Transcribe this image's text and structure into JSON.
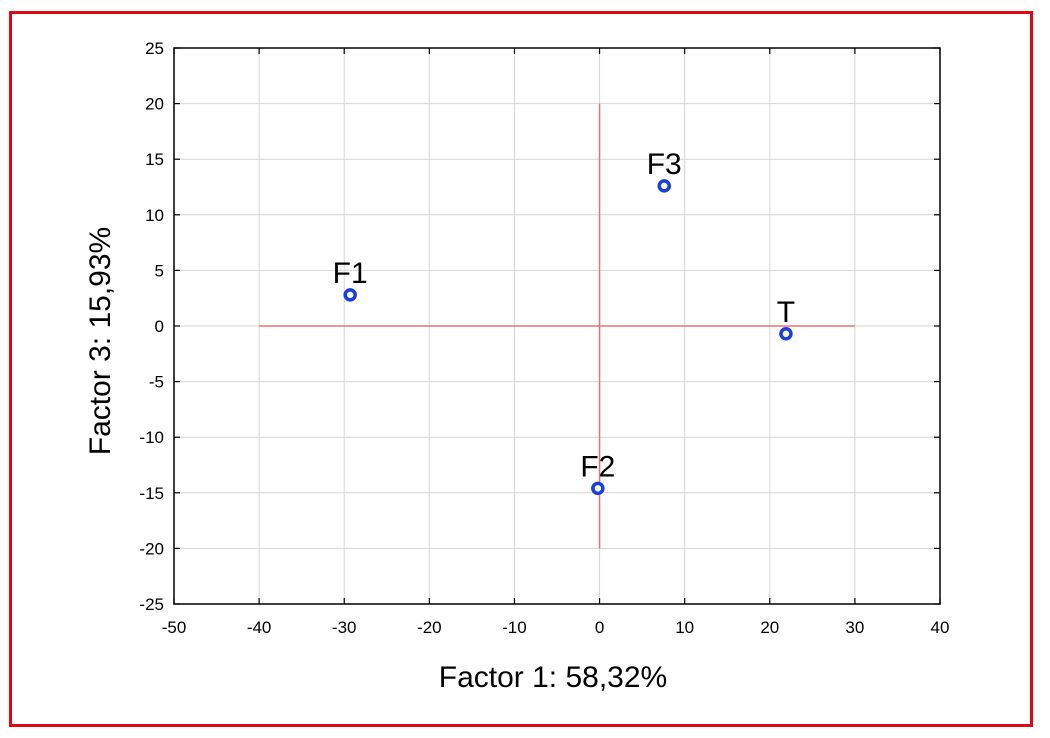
{
  "chart_data": {
    "type": "scatter",
    "title": "",
    "xlabel": "Factor 1: 58,32%",
    "ylabel": "Factor 3: 15,93%",
    "xlim": [
      -50,
      40
    ],
    "ylim": [
      -25,
      25
    ],
    "xticks": [
      "-50",
      "-40",
      "-30",
      "-20",
      "-10",
      "0",
      "10",
      "20",
      "30",
      "40"
    ],
    "yticks": [
      "25",
      "20",
      "15",
      "10",
      "5",
      "0",
      "-5",
      "-10",
      "-15",
      "-20",
      "-25"
    ],
    "grid": true,
    "points": [
      {
        "label": "F1",
        "x": -29.3,
        "y": 2.8
      },
      {
        "label": "F2",
        "x": -0.2,
        "y": -14.6
      },
      {
        "label": "F3",
        "x": 7.6,
        "y": 12.6
      },
      {
        "label": "T",
        "x": 21.9,
        "y": -0.7
      }
    ],
    "reference_lines": {
      "horizontal": {
        "y": 0,
        "x_from": -40,
        "x_to": 30
      },
      "vertical": {
        "x": 0,
        "y_from": -20,
        "y_to": 20
      }
    },
    "colors": {
      "frame": "#e30613",
      "reference_lines": "#e8707a",
      "grid": "#d6d6d6",
      "marker": "#1a3fe0"
    }
  }
}
